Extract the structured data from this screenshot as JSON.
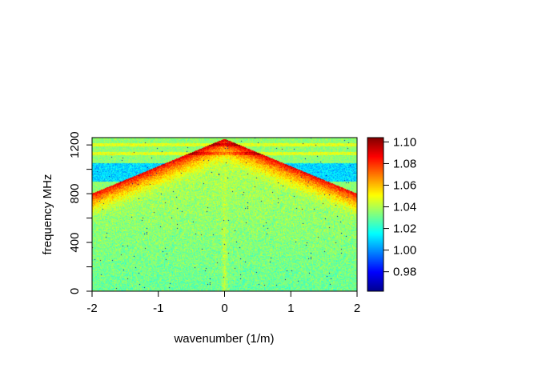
{
  "chart_data": {
    "type": "heatmap",
    "title": "",
    "xlabel": "wavenumber (1/m)",
    "ylabel": "frequency MHz",
    "xlim": [
      -2,
      2
    ],
    "ylim": [
      0,
      1260
    ],
    "x_ticks": [
      -2,
      -1,
      0,
      1,
      2
    ],
    "x_tick_labels": [
      "-2",
      "-1",
      "0",
      "1",
      "2"
    ],
    "y_ticks": [
      0,
      200,
      400,
      600,
      800,
      1000,
      1200
    ],
    "y_tick_labels": [
      "0",
      "",
      "400",
      "",
      "800",
      "",
      "1200"
    ],
    "colorbar": {
      "range": [
        0.962,
        1.104
      ],
      "ticks": [
        0.98,
        1.0,
        1.02,
        1.04,
        1.06,
        1.08,
        1.1
      ],
      "tick_labels": [
        "0.98",
        "1.00",
        "1.02",
        "1.04",
        "1.06",
        "1.08",
        "1.10"
      ],
      "colormap": [
        "#00008f",
        "#0000ff",
        "#0080ff",
        "#00ffff",
        "#80ff80",
        "#ffff00",
        "#ff8000",
        "#ff0000",
        "#800000"
      ]
    },
    "features": {
      "background_value": 1.03,
      "cone_apex": {
        "wavenumber": 0,
        "frequency": 1250
      },
      "cone_edge_frequency_at_abs_k_2": 800,
      "hot_region_value": 1.08,
      "low_band_frequency": [
        900,
        1050
      ],
      "low_band_value": 1.01,
      "horizontal_stripe_frequencies": [
        1130,
        1200
      ]
    }
  }
}
